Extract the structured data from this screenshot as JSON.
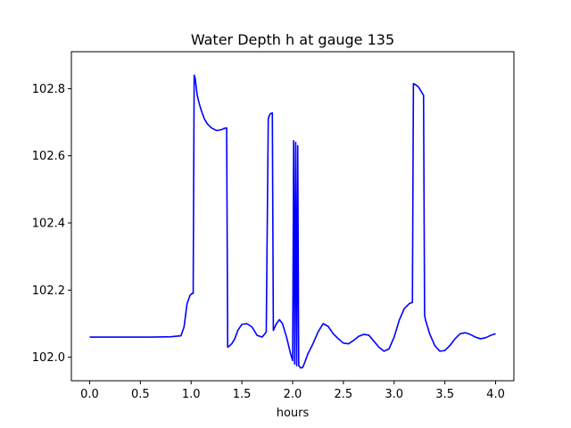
{
  "chart_data": {
    "type": "line",
    "title": "Water Depth h at gauge 135",
    "xlabel": "hours",
    "ylabel": "",
    "xlim": [
      -0.18,
      4.18
    ],
    "ylim": [
      101.93,
      102.91
    ],
    "xticks": [
      0.0,
      0.5,
      1.0,
      1.5,
      2.0,
      2.5,
      3.0,
      3.5,
      4.0
    ],
    "xtick_labels": [
      "0.0",
      "0.5",
      "1.0",
      "1.5",
      "2.0",
      "2.5",
      "3.0",
      "3.5",
      "4.0"
    ],
    "yticks": [
      102.0,
      102.2,
      102.4,
      102.6,
      102.8
    ],
    "ytick_labels": [
      "102.0",
      "102.2",
      "102.4",
      "102.6",
      "102.8"
    ],
    "grid": false,
    "series": [
      {
        "color": "#0000ff",
        "x": [
          0.0,
          0.3,
          0.6,
          0.8,
          0.9,
          0.93,
          0.96,
          0.99,
          1.01,
          1.02,
          1.03,
          1.04,
          1.06,
          1.08,
          1.1,
          1.13,
          1.16,
          1.2,
          1.25,
          1.3,
          1.33,
          1.35,
          1.36,
          1.37,
          1.4,
          1.43,
          1.46,
          1.5,
          1.55,
          1.6,
          1.65,
          1.7,
          1.74,
          1.76,
          1.77,
          1.78,
          1.8,
          1.81,
          1.81,
          1.84,
          1.87,
          1.9,
          1.94,
          1.98,
          2.0,
          2.01,
          2.02,
          2.03,
          2.04,
          2.05,
          2.06,
          2.08,
          2.1,
          2.12,
          2.15,
          2.2,
          2.25,
          2.3,
          2.35,
          2.4,
          2.45,
          2.5,
          2.55,
          2.6,
          2.65,
          2.7,
          2.75,
          2.8,
          2.85,
          2.9,
          2.95,
          3.0,
          3.05,
          3.1,
          3.15,
          3.18,
          3.19,
          3.21,
          3.24,
          3.27,
          3.29,
          3.3,
          3.31,
          3.35,
          3.4,
          3.45,
          3.5,
          3.55,
          3.6,
          3.65,
          3.7,
          3.75,
          3.8,
          3.85,
          3.9,
          3.95,
          4.0
        ],
        "y": [
          102.06,
          102.06,
          102.06,
          102.061,
          102.064,
          102.09,
          102.16,
          102.185,
          102.19,
          102.19,
          102.84,
          102.83,
          102.78,
          102.755,
          102.735,
          102.71,
          102.695,
          102.683,
          102.675,
          102.678,
          102.682,
          102.683,
          102.03,
          102.032,
          102.04,
          102.055,
          102.08,
          102.098,
          102.1,
          102.09,
          102.065,
          102.06,
          102.075,
          102.71,
          102.72,
          102.725,
          102.728,
          102.08,
          102.08,
          102.1,
          102.112,
          102.1,
          102.06,
          102.01,
          101.99,
          102.645,
          101.98,
          102.64,
          101.975,
          102.63,
          101.975,
          101.968,
          101.97,
          101.985,
          102.01,
          102.04,
          102.075,
          102.1,
          102.092,
          102.07,
          102.055,
          102.042,
          102.04,
          102.05,
          102.062,
          102.068,
          102.066,
          102.048,
          102.03,
          102.018,
          102.025,
          102.06,
          102.11,
          102.145,
          102.16,
          102.163,
          102.815,
          102.812,
          102.805,
          102.79,
          102.78,
          102.125,
          102.11,
          102.07,
          102.035,
          102.018,
          102.02,
          102.035,
          102.055,
          102.07,
          102.073,
          102.068,
          102.06,
          102.055,
          102.058,
          102.065,
          102.07
        ]
      }
    ]
  }
}
